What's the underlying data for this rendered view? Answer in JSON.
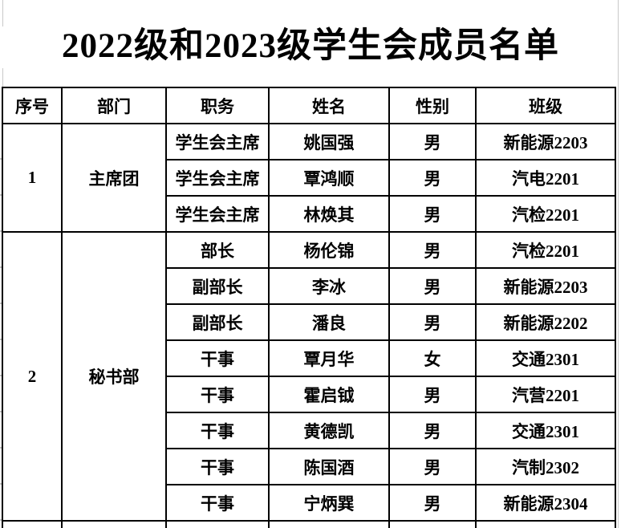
{
  "title": "2022级和2023级学生会成员名单",
  "table": {
    "headers": [
      "序号",
      "部门",
      "职务",
      "姓名",
      "性别",
      "班级"
    ],
    "groups": [
      {
        "index": "1",
        "department": "主席团",
        "members": [
          {
            "position": "学生会主席",
            "name": "姚国强",
            "gender": "男",
            "class": "新能源2203"
          },
          {
            "position": "学生会主席",
            "name": "覃鸿顺",
            "gender": "男",
            "class": "汽电2201"
          },
          {
            "position": "学生会主席",
            "name": "林焕其",
            "gender": "男",
            "class": "汽检2201"
          }
        ]
      },
      {
        "index": "2",
        "department": "秘书部",
        "members": [
          {
            "position": "部长",
            "name": "杨伦锦",
            "gender": "男",
            "class": "汽检2201"
          },
          {
            "position": "副部长",
            "name": "李冰",
            "gender": "男",
            "class": "新能源2203"
          },
          {
            "position": "副部长",
            "name": "潘良",
            "gender": "男",
            "class": "新能源2202"
          },
          {
            "position": "干事",
            "name": "覃月华",
            "gender": "女",
            "class": "交通2301"
          },
          {
            "position": "干事",
            "name": "霍启钺",
            "gender": "男",
            "class": "汽营2201"
          },
          {
            "position": "干事",
            "name": "黄德凯",
            "gender": "男",
            "class": "交通2301"
          },
          {
            "position": "干事",
            "name": "陈国酒",
            "gender": "男",
            "class": "汽制2302"
          },
          {
            "position": "干事",
            "name": "宁炳巽",
            "gender": "男",
            "class": "新能源2304"
          }
        ]
      }
    ],
    "has_partial_next_row": true
  },
  "colors": {
    "border": "#000000",
    "text": "#000000",
    "background": "#ffffff",
    "gridline_gray": "#c9c9c9"
  }
}
